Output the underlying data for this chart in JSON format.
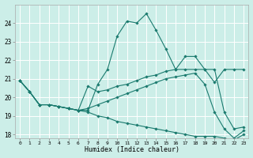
{
  "xlabel": "Humidex (Indice chaleur)",
  "ylabel": "",
  "bg_color": "#cceee8",
  "grid_color": "#ffffff",
  "line_color": "#1a7a6e",
  "xlim": [
    -0.5,
    23.5
  ],
  "ylim": [
    17.8,
    25.0
  ],
  "yticks": [
    18,
    19,
    20,
    21,
    22,
    23,
    24
  ],
  "xticks": [
    0,
    1,
    2,
    3,
    4,
    5,
    6,
    7,
    8,
    9,
    10,
    11,
    12,
    13,
    14,
    15,
    16,
    17,
    18,
    19,
    20,
    21,
    22,
    23
  ],
  "series": [
    [
      20.9,
      20.3,
      19.6,
      19.6,
      19.5,
      19.4,
      19.3,
      19.3,
      20.7,
      21.5,
      23.3,
      24.1,
      24.0,
      24.5,
      23.6,
      22.6,
      21.5,
      22.2,
      22.2,
      21.5,
      21.5,
      19.2,
      18.3,
      18.4
    ],
    [
      20.9,
      20.3,
      19.6,
      19.6,
      19.5,
      19.4,
      19.3,
      20.6,
      20.3,
      20.4,
      20.6,
      20.7,
      20.9,
      21.1,
      21.2,
      21.4,
      21.5,
      21.5,
      21.5,
      21.5,
      20.8,
      21.5,
      21.5,
      21.5
    ],
    [
      20.9,
      20.3,
      19.6,
      19.6,
      19.5,
      19.4,
      19.3,
      19.4,
      19.6,
      19.8,
      20.0,
      20.2,
      20.4,
      20.6,
      20.8,
      21.0,
      21.1,
      21.2,
      21.3,
      20.7,
      19.2,
      18.3,
      17.8,
      18.2
    ],
    [
      20.9,
      20.3,
      19.6,
      19.6,
      19.5,
      19.4,
      19.3,
      19.2,
      19.0,
      18.9,
      18.7,
      18.6,
      18.5,
      18.4,
      18.3,
      18.2,
      18.1,
      18.0,
      17.9,
      17.9,
      17.9,
      17.8,
      17.7,
      18.0
    ]
  ]
}
